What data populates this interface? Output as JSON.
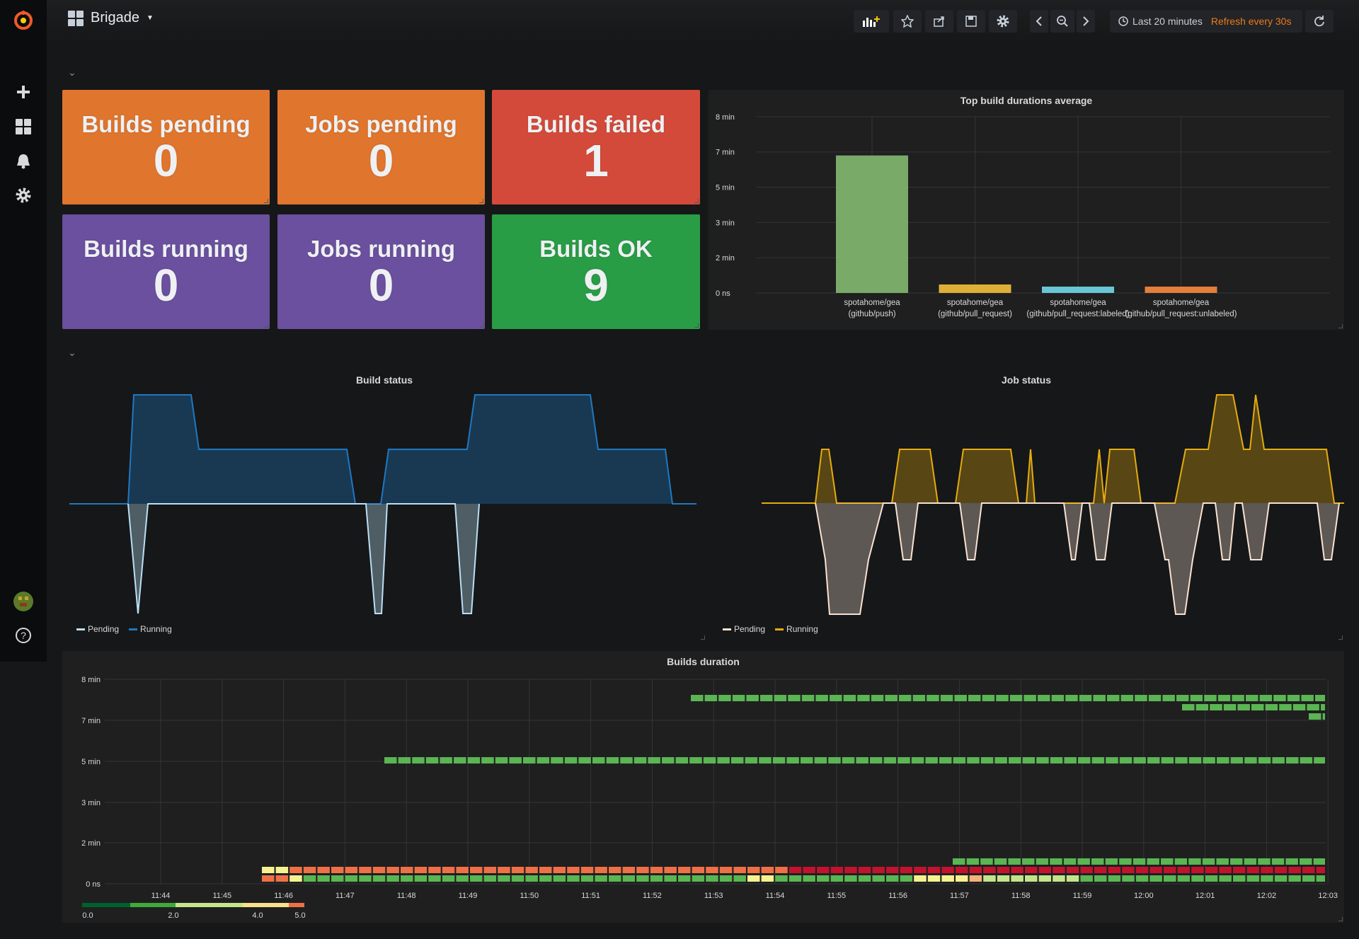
{
  "topbar": {
    "dashboard_title": "Brigade",
    "time_range": "Last 20 minutes",
    "refresh": "Refresh every 30s"
  },
  "stats": [
    {
      "title": "Builds pending",
      "value": "0",
      "color": "#e0752d"
    },
    {
      "title": "Jobs pending",
      "value": "0",
      "color": "#e0752d"
    },
    {
      "title": "Builds failed",
      "value": "1",
      "color": "#d44a3a"
    },
    {
      "title": "Builds running",
      "value": "0",
      "color": "#6a509e"
    },
    {
      "title": "Jobs running",
      "value": "0",
      "color": "#6a509e"
    },
    {
      "title": "Builds OK",
      "value": "9",
      "color": "#299c46"
    }
  ],
  "bar_panel": {
    "title": "Top build durations average",
    "y_ticks": [
      "8 min",
      "7 min",
      "5 min",
      "3 min",
      "2 min",
      "0 ns"
    ]
  },
  "build_status": {
    "title": "Build status",
    "legend": [
      {
        "name": "Pending",
        "color": "#badff4"
      },
      {
        "name": "Running",
        "color": "#1f78c1"
      }
    ]
  },
  "job_status": {
    "title": "Job status",
    "legend": [
      {
        "name": "Pending",
        "color": "#f9e2d2"
      },
      {
        "name": "Running",
        "color": "#e5ac0e"
      }
    ]
  },
  "heatmap": {
    "title": "Builds duration",
    "y_ticks": [
      "8 min",
      "7 min",
      "5 min",
      "3 min",
      "2 min",
      "0 ns"
    ],
    "x_ticks": [
      "11:44",
      "11:45",
      "11:46",
      "11:47",
      "11:48",
      "11:49",
      "11:50",
      "11:51",
      "11:52",
      "11:53",
      "11:54",
      "11:55",
      "11:56",
      "11:57",
      "11:58",
      "11:59",
      "12:00",
      "12:01",
      "12:02",
      "12:03"
    ],
    "scale_labels": [
      "0.0",
      "2.0",
      "4.0",
      "5.0"
    ]
  },
  "chart_data": [
    {
      "type": "bar",
      "title": "Top build durations average",
      "categories": [
        "spotahome/gea (github/push)",
        "spotahome/gea (github/pull_request)",
        "spotahome/gea (github/pull_request:labeled)",
        "spotahome/gea (github/pull_request:unlabeled)"
      ],
      "category_lines": [
        [
          "spotahome/gea",
          "(github/push)"
        ],
        [
          "spotahome/gea",
          "(github/pull_request)"
        ],
        [
          "spotahome/gea",
          "(github/pull_request:labeled)"
        ],
        [
          "spotahome/gea",
          "(github/pull_request:unlabeled)"
        ]
      ],
      "values_min": [
        6.5,
        0.4,
        0.3,
        0.3
      ],
      "colors": [
        "#7eb26d",
        "#eab839",
        "#6ed0e0",
        "#ef843c"
      ],
      "y_ticks": [
        "0 ns",
        "2 min",
        "3 min",
        "5 min",
        "7 min",
        "8 min"
      ],
      "ylim_min": [
        0,
        8.33
      ]
    },
    {
      "type": "area",
      "title": "Build status",
      "series": [
        {
          "name": "Running",
          "color": "#1f78c1",
          "values": [
            0,
            1,
            1,
            0.5,
            0.5,
            0,
            0.5,
            0.5,
            1,
            1,
            0.5,
            0.5,
            0
          ]
        },
        {
          "name": "Pending",
          "color": "#badff4",
          "values": [
            0,
            -1,
            0,
            -1,
            0,
            -1,
            0
          ]
        }
      ]
    },
    {
      "type": "area",
      "title": "Job status",
      "series": [
        {
          "name": "Running",
          "color": "#e5ac0e",
          "values": [
            0,
            1,
            0,
            1,
            0,
            1,
            0,
            1,
            0,
            1,
            1,
            1,
            0
          ]
        },
        {
          "name": "Pending",
          "color": "#f9e2d2",
          "values": [
            0,
            -1,
            -2,
            -1,
            0,
            -1,
            0,
            -1,
            0,
            -2,
            -1,
            0
          ]
        }
      ]
    },
    {
      "type": "heatmap",
      "title": "Builds duration",
      "x": [
        "11:44",
        "11:45",
        "11:46",
        "11:47",
        "11:48",
        "11:49",
        "11:50",
        "11:51",
        "11:52",
        "11:53",
        "11:54",
        "11:55",
        "11:56",
        "11:57",
        "11:58",
        "11:59",
        "12:00",
        "12:01",
        "12:02",
        "12:03"
      ],
      "y_ticks": [
        "0 ns",
        "2 min",
        "3 min",
        "5 min",
        "7 min",
        "8 min"
      ],
      "rows": [
        {
          "y_min": 7.4,
          "start": "11:52",
          "end": "12:03",
          "color": "#5ab552"
        },
        {
          "y_min": 7.2,
          "start": "12:00",
          "end": "12:03",
          "color": "#5ab552"
        },
        {
          "y_min": 7.0,
          "start": "12:02",
          "end": "12:03",
          "color": "#5ab552"
        },
        {
          "y_min": 5.0,
          "start": "11:47",
          "end": "12:03",
          "color": "#5ab552"
        },
        {
          "y_min": 0.5,
          "start": "11:56",
          "end": "12:03",
          "color": "#5ab552"
        }
      ],
      "scale": [
        0.0,
        5.0
      ]
    }
  ]
}
